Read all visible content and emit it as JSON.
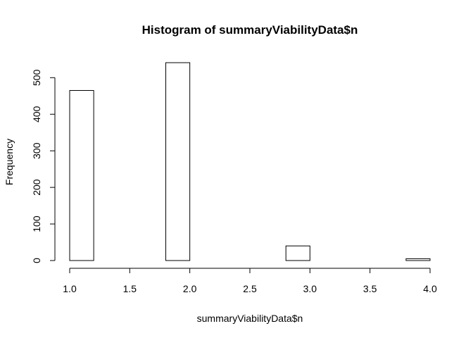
{
  "chart_data": {
    "type": "bar",
    "title": "Histogram of summaryViabilityData$n",
    "xlabel": "summaryViabilityData$n",
    "ylabel": "Frequency",
    "bins": [
      {
        "start": 1.0,
        "end": 1.2,
        "count": 465
      },
      {
        "start": 1.2,
        "end": 1.4,
        "count": 0
      },
      {
        "start": 1.4,
        "end": 1.6,
        "count": 0
      },
      {
        "start": 1.6,
        "end": 1.8,
        "count": 0
      },
      {
        "start": 1.8,
        "end": 2.0,
        "count": 541
      },
      {
        "start": 2.0,
        "end": 2.2,
        "count": 0
      },
      {
        "start": 2.2,
        "end": 2.4,
        "count": 0
      },
      {
        "start": 2.4,
        "end": 2.6,
        "count": 0
      },
      {
        "start": 2.6,
        "end": 2.8,
        "count": 0
      },
      {
        "start": 2.8,
        "end": 3.0,
        "count": 40
      },
      {
        "start": 3.0,
        "end": 3.2,
        "count": 0
      },
      {
        "start": 3.2,
        "end": 3.4,
        "count": 0
      },
      {
        "start": 3.4,
        "end": 3.6,
        "count": 0
      },
      {
        "start": 3.6,
        "end": 3.8,
        "count": 0
      },
      {
        "start": 3.8,
        "end": 4.0,
        "count": 5
      }
    ],
    "xlim": [
      1.0,
      4.0
    ],
    "ylim": [
      0,
      541
    ],
    "xticks": [
      "1.0",
      "1.5",
      "2.0",
      "2.5",
      "3.0",
      "3.5",
      "4.0"
    ],
    "yticks": [
      "0",
      "100",
      "200",
      "300",
      "400",
      "500"
    ],
    "grid": false,
    "legend": "none"
  }
}
